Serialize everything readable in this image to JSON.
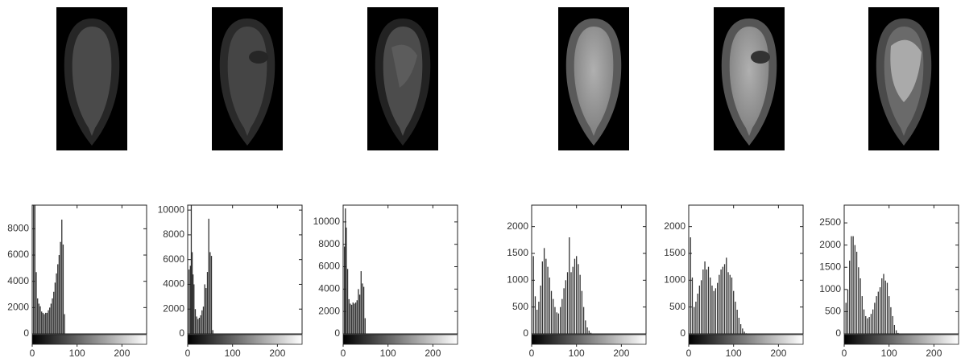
{
  "chart_data": [
    {
      "type": "bar",
      "color": "#333333",
      "xlim": [
        0,
        255
      ],
      "xticks": [
        0,
        100,
        200
      ],
      "ylim": [
        0,
        9800
      ],
      "yticks": [
        0,
        2000,
        4000,
        6000,
        8000
      ],
      "x": [
        3,
        6,
        9,
        12,
        15,
        18,
        21,
        24,
        27,
        30,
        33,
        36,
        39,
        42,
        45,
        48,
        51,
        54,
        57,
        60,
        63,
        66,
        69,
        72
      ],
      "values": [
        9800,
        9800,
        4700,
        2700,
        2300,
        2100,
        1700,
        1600,
        1500,
        1600,
        1600,
        1800,
        2000,
        2300,
        2700,
        3200,
        3900,
        4600,
        5300,
        6000,
        7000,
        8700,
        6800,
        1500
      ]
    },
    {
      "type": "bar",
      "color": "#333333",
      "xlim": [
        0,
        255
      ],
      "xticks": [
        0,
        100,
        200
      ],
      "ylim": [
        0,
        10400
      ],
      "yticks": [
        0,
        2000,
        4000,
        6000,
        8000,
        10000
      ],
      "x": [
        3,
        6,
        8,
        10,
        12,
        14,
        17,
        20,
        23,
        26,
        29,
        32,
        35,
        38,
        41,
        44,
        47,
        50,
        53,
        56
      ],
      "values": [
        5200,
        5500,
        10400,
        6600,
        4800,
        4000,
        2000,
        1400,
        1200,
        1300,
        1500,
        1900,
        2200,
        4000,
        3700,
        5000,
        9300,
        6600,
        6300,
        300
      ]
    },
    {
      "type": "bar",
      "color": "#333333",
      "xlim": [
        0,
        255
      ],
      "xticks": [
        0,
        100,
        200
      ],
      "ylim": [
        0,
        11500
      ],
      "yticks": [
        0,
        2000,
        4000,
        6000,
        8000,
        10000
      ],
      "x": [
        3,
        5,
        7,
        10,
        13,
        16,
        19,
        22,
        25,
        28,
        31,
        34,
        37,
        40,
        43,
        46,
        49
      ],
      "values": [
        7800,
        11200,
        9500,
        5800,
        3100,
        2700,
        2600,
        2800,
        2700,
        2800,
        3000,
        4000,
        3500,
        5600,
        4500,
        4200,
        1400
      ]
    },
    {
      "type": "bar",
      "color": "#333333",
      "xlim": [
        0,
        255
      ],
      "xticks": [
        0,
        100,
        200
      ],
      "ylim": [
        0,
        2400
      ],
      "yticks": [
        0,
        500,
        1000,
        1500,
        2000
      ],
      "x": [
        4,
        8,
        12,
        16,
        20,
        24,
        28,
        32,
        36,
        40,
        44,
        48,
        52,
        56,
        60,
        64,
        68,
        72,
        76,
        80,
        84,
        88,
        92,
        96,
        100,
        104,
        108,
        112,
        116,
        120,
        124,
        128,
        132
      ],
      "values": [
        1450,
        700,
        450,
        600,
        900,
        1350,
        1600,
        1400,
        1250,
        1050,
        800,
        650,
        500,
        400,
        380,
        500,
        650,
        850,
        1000,
        1150,
        1800,
        1150,
        1250,
        1400,
        1450,
        1300,
        1100,
        800,
        500,
        250,
        120,
        60,
        20
      ]
    },
    {
      "type": "bar",
      "color": "#333333",
      "xlim": [
        0,
        255
      ],
      "xticks": [
        0,
        100,
        200
      ],
      "ylim": [
        0,
        2400
      ],
      "yticks": [
        0,
        500,
        1000,
        1500,
        2000
      ],
      "x": [
        4,
        8,
        12,
        16,
        20,
        24,
        28,
        32,
        36,
        40,
        44,
        48,
        52,
        56,
        60,
        64,
        68,
        72,
        76,
        80,
        84,
        88,
        92,
        96,
        100,
        104,
        108,
        112,
        116,
        120,
        124,
        128
      ],
      "values": [
        1800,
        1050,
        500,
        600,
        750,
        900,
        1000,
        1200,
        1350,
        1200,
        1250,
        1050,
        900,
        800,
        850,
        950,
        1100,
        1200,
        1250,
        1300,
        1420,
        1150,
        1100,
        1050,
        800,
        600,
        450,
        300,
        180,
        100,
        40,
        10
      ]
    },
    {
      "type": "bar",
      "color": "#333333",
      "xlim": [
        0,
        255
      ],
      "xticks": [
        0,
        100,
        200
      ],
      "ylim": [
        0,
        2900
      ],
      "yticks": [
        0,
        500,
        1000,
        1500,
        2000,
        2500
      ],
      "x": [
        4,
        8,
        12,
        16,
        20,
        24,
        28,
        32,
        36,
        40,
        44,
        48,
        52,
        56,
        60,
        64,
        68,
        72,
        76,
        80,
        84,
        88,
        92,
        96,
        100,
        104,
        108,
        112,
        116,
        120
      ],
      "values": [
        700,
        1000,
        1650,
        2200,
        2200,
        2000,
        1850,
        1500,
        1250,
        850,
        550,
        400,
        350,
        380,
        450,
        550,
        700,
        850,
        950,
        1050,
        1250,
        1350,
        1200,
        1150,
        850,
        600,
        400,
        200,
        80,
        20
      ]
    }
  ]
}
